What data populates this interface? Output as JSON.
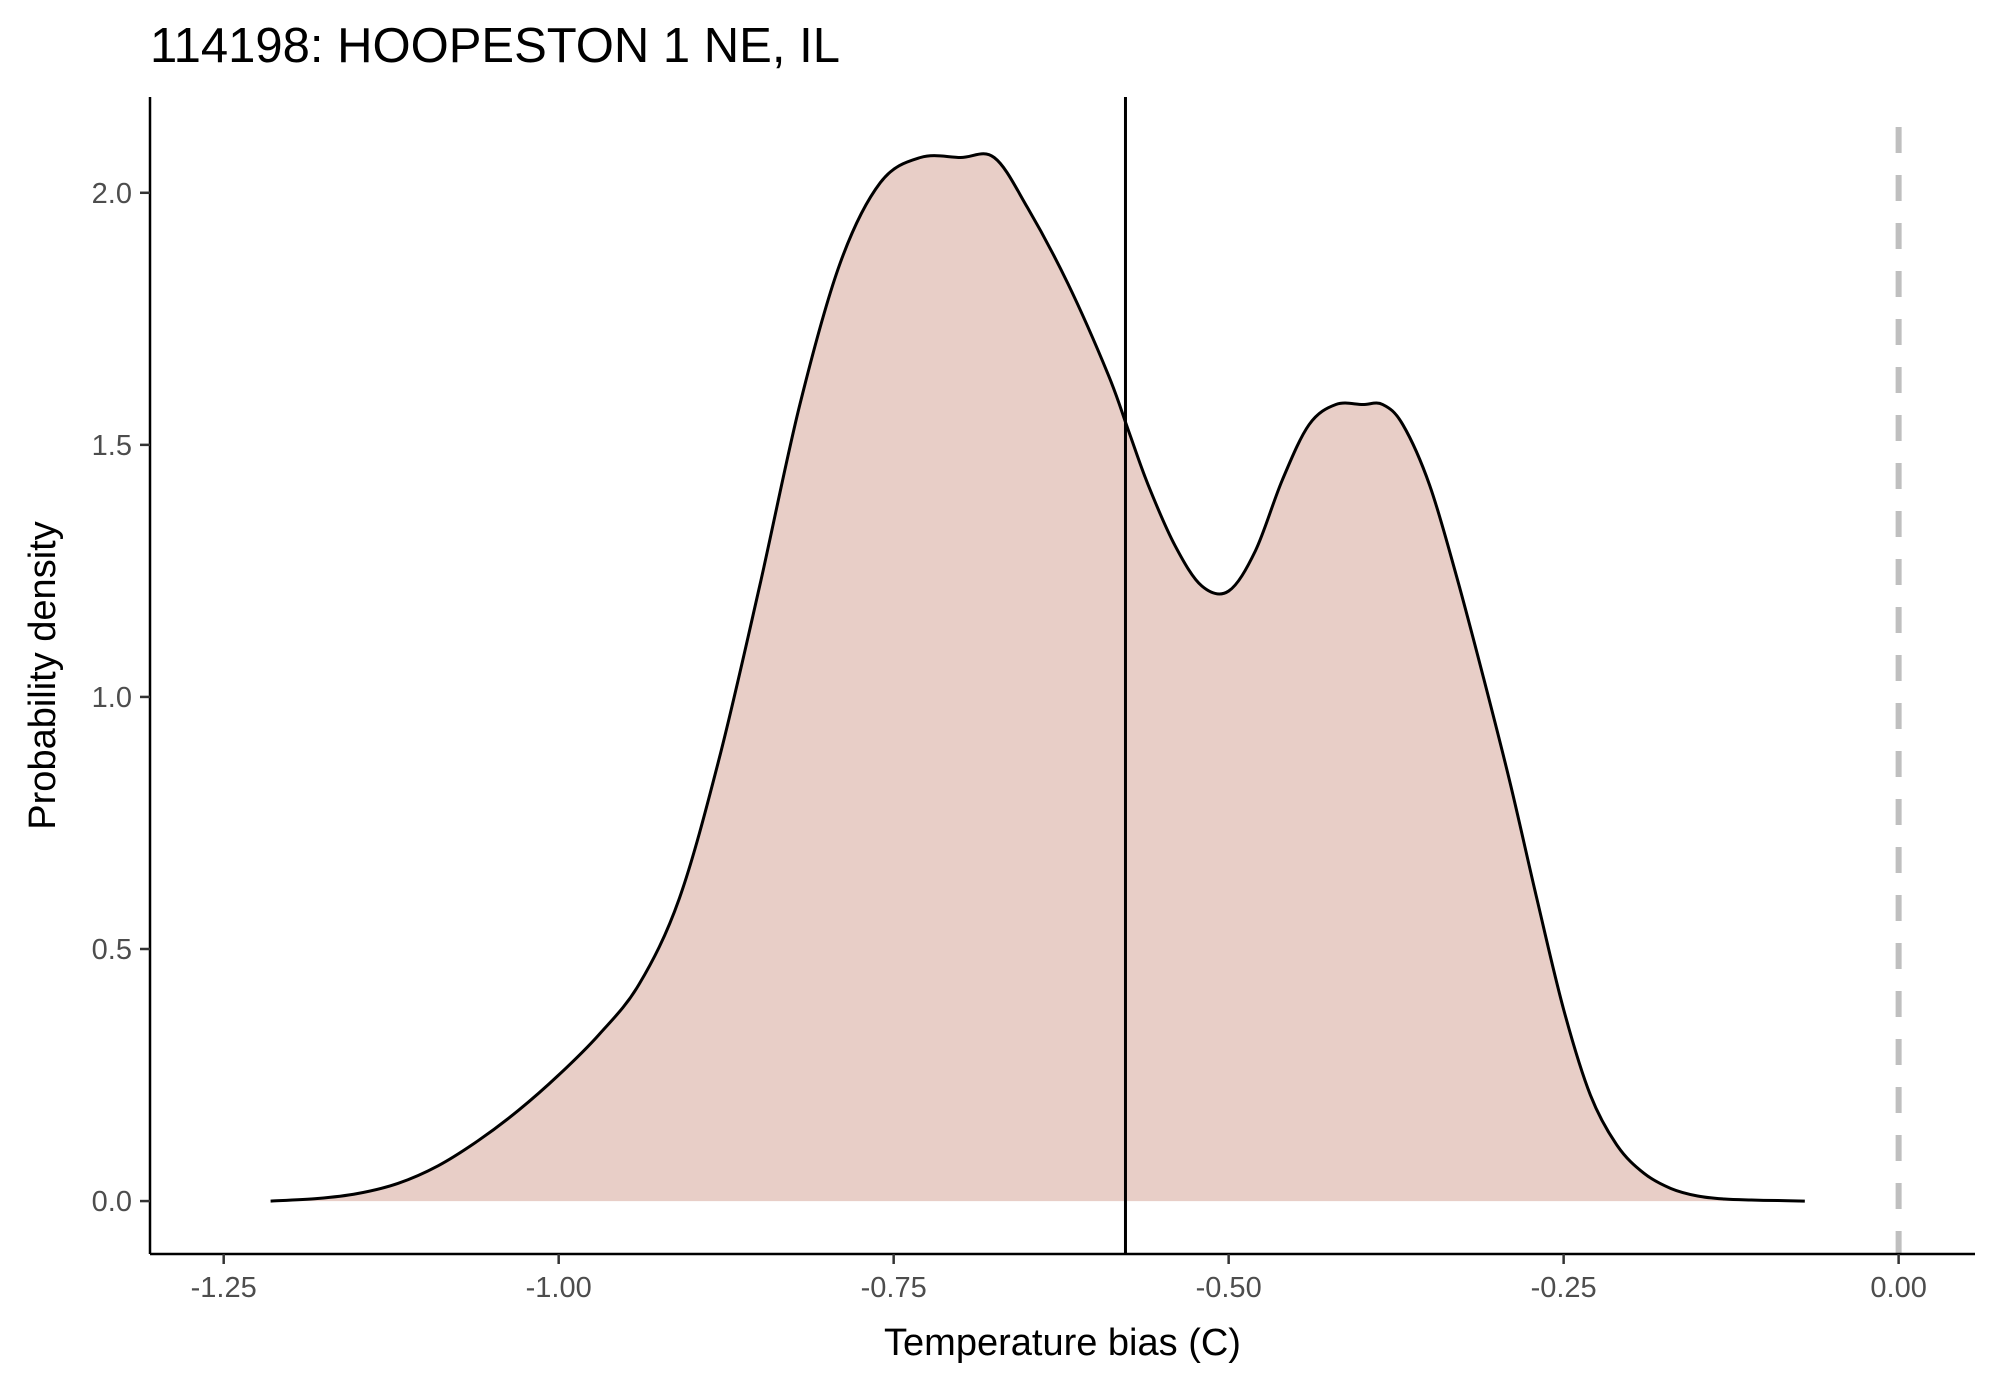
{
  "chart_data": {
    "type": "area",
    "title": "114198: HOOPESTON 1 NE, IL",
    "xlabel": "Temperature bias (C)",
    "ylabel": "Probability density",
    "xlim": [
      -1.305,
      0.057
    ],
    "ylim": [
      -0.105,
      2.19
    ],
    "x_ticks": [
      -1.25,
      -1.0,
      -0.75,
      -0.5,
      -0.25,
      0.0
    ],
    "x_tick_labels": [
      "-1.25",
      "-1.00",
      "-0.75",
      "-0.50",
      "-0.25",
      "0.00"
    ],
    "y_ticks": [
      0.0,
      0.5,
      1.0,
      1.5,
      2.0
    ],
    "y_tick_labels": [
      "0.0",
      "0.5",
      "1.0",
      "1.5",
      "2.0"
    ],
    "grid": false,
    "legend": "none",
    "fill_color": "#e8cec7",
    "line_color": "#000000",
    "reference_color": "#bfbfbf",
    "series": [
      {
        "x": [
          -1.215,
          -1.18,
          -1.15,
          -1.12,
          -1.09,
          -1.06,
          -1.03,
          -1.0,
          -0.97,
          -0.94,
          -0.91,
          -0.88,
          -0.85,
          -0.82,
          -0.79,
          -0.76,
          -0.73,
          -0.7,
          -0.675,
          -0.65,
          -0.62,
          -0.59,
          -0.575,
          -0.56,
          -0.54,
          -0.52,
          -0.5,
          -0.48,
          -0.46,
          -0.44,
          -0.42,
          -0.4,
          -0.385,
          -0.37,
          -0.35,
          -0.33,
          -0.31,
          -0.29,
          -0.27,
          -0.25,
          -0.23,
          -0.21,
          -0.19,
          -0.17,
          -0.15,
          -0.13,
          -0.11,
          -0.09,
          -0.07
        ],
        "y": [
          0.0,
          0.005,
          0.015,
          0.035,
          0.07,
          0.12,
          0.18,
          0.25,
          0.33,
          0.43,
          0.6,
          0.88,
          1.22,
          1.58,
          1.86,
          2.02,
          2.07,
          2.07,
          2.07,
          1.97,
          1.82,
          1.64,
          1.53,
          1.42,
          1.3,
          1.22,
          1.21,
          1.29,
          1.43,
          1.54,
          1.58,
          1.58,
          1.58,
          1.54,
          1.42,
          1.24,
          1.04,
          0.83,
          0.6,
          0.38,
          0.21,
          0.11,
          0.055,
          0.025,
          0.01,
          0.004,
          0.002,
          0.001,
          0.0
        ]
      }
    ],
    "vertical_lines": [
      {
        "x": -0.577,
        "style": "solid"
      },
      {
        "x": 0.0,
        "style": "dashed"
      }
    ]
  }
}
